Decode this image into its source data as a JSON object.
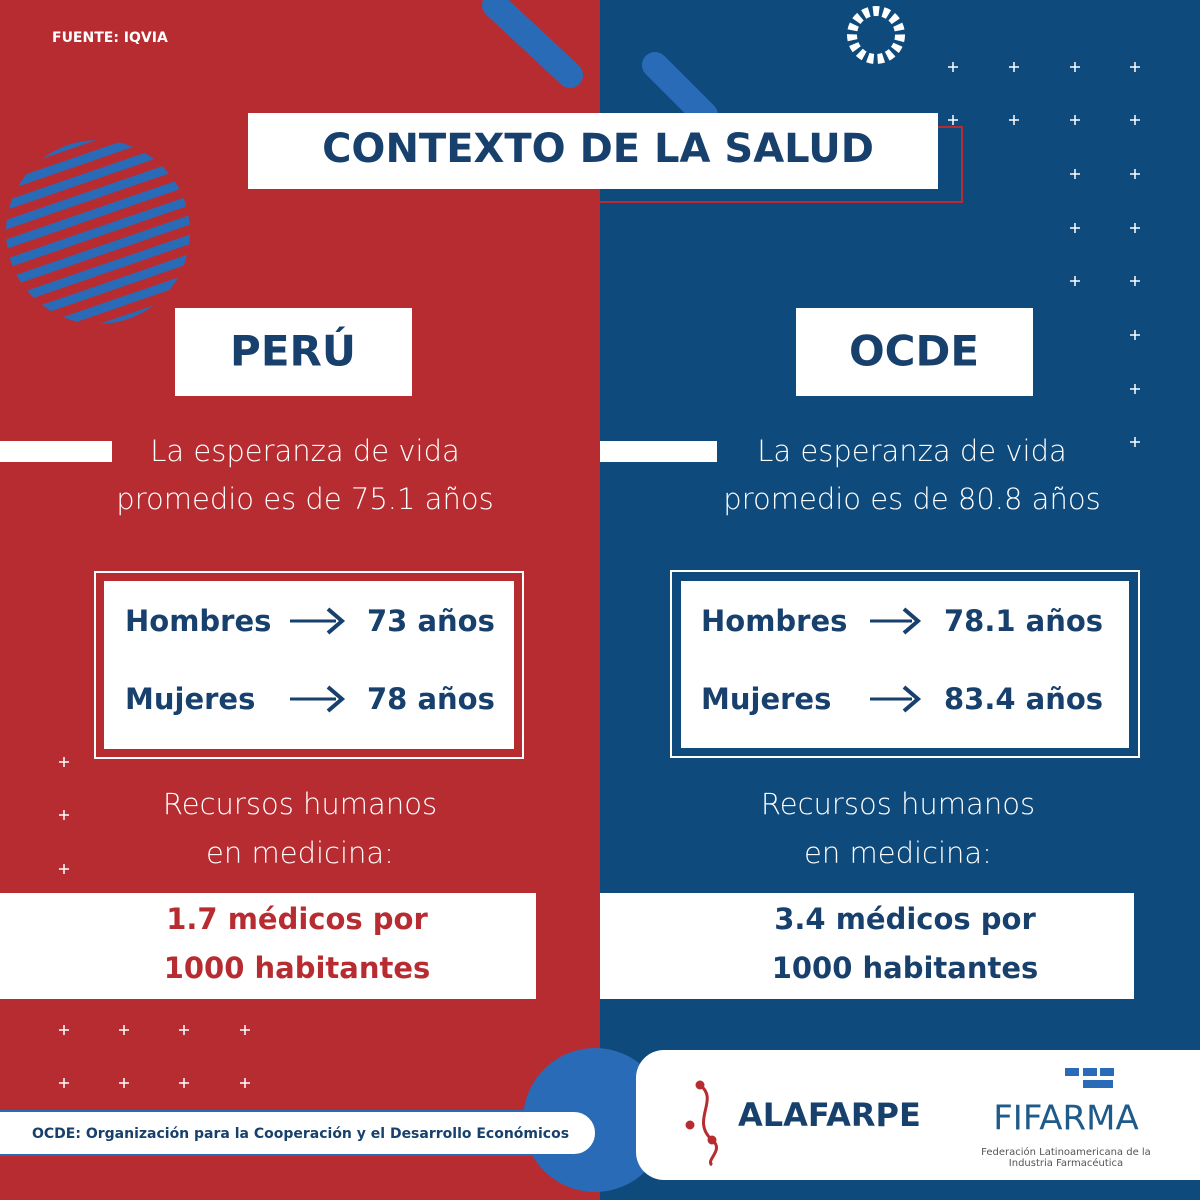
{
  "header": {
    "source": "FUENTE: IQVIA",
    "title": "CONTEXTO DE LA SALUD"
  },
  "panels": [
    {
      "name": "PERÚ",
      "life_expectancy": [
        "La esperanza de vida",
        "promedio es de 75.1 años"
      ],
      "stats": [
        {
          "label": "Hombres",
          "value": "73 años"
        },
        {
          "label": "Mujeres",
          "value": "78 años"
        }
      ],
      "resources_title": [
        "Recursos humanos",
        "en medicina:"
      ],
      "doctors": [
        "1.7 médicos por",
        "1000 habitantes"
      ]
    },
    {
      "name": "OCDE",
      "life_expectancy": [
        "La esperanza de vida",
        "promedio es de 80.8 años"
      ],
      "stats": [
        {
          "label": "Hombres",
          "value": "78.1 años"
        },
        {
          "label": "Mujeres",
          "value": "83.4 años"
        }
      ],
      "resources_title": [
        "Recursos humanos",
        "en medicina:"
      ],
      "doctors": [
        "3.4 médicos por",
        "1000 habitantes"
      ]
    }
  ],
  "footer": {
    "note": "OCDE: Organización para la Cooperación y el Desarrollo Económicos",
    "logos": {
      "alafarpe": "ALAFARPE",
      "fifarma": "FIFARMA",
      "fifarma_subtitle": [
        "Federación Latinoamericana de la",
        "Industria Farmacéutica"
      ]
    }
  }
}
